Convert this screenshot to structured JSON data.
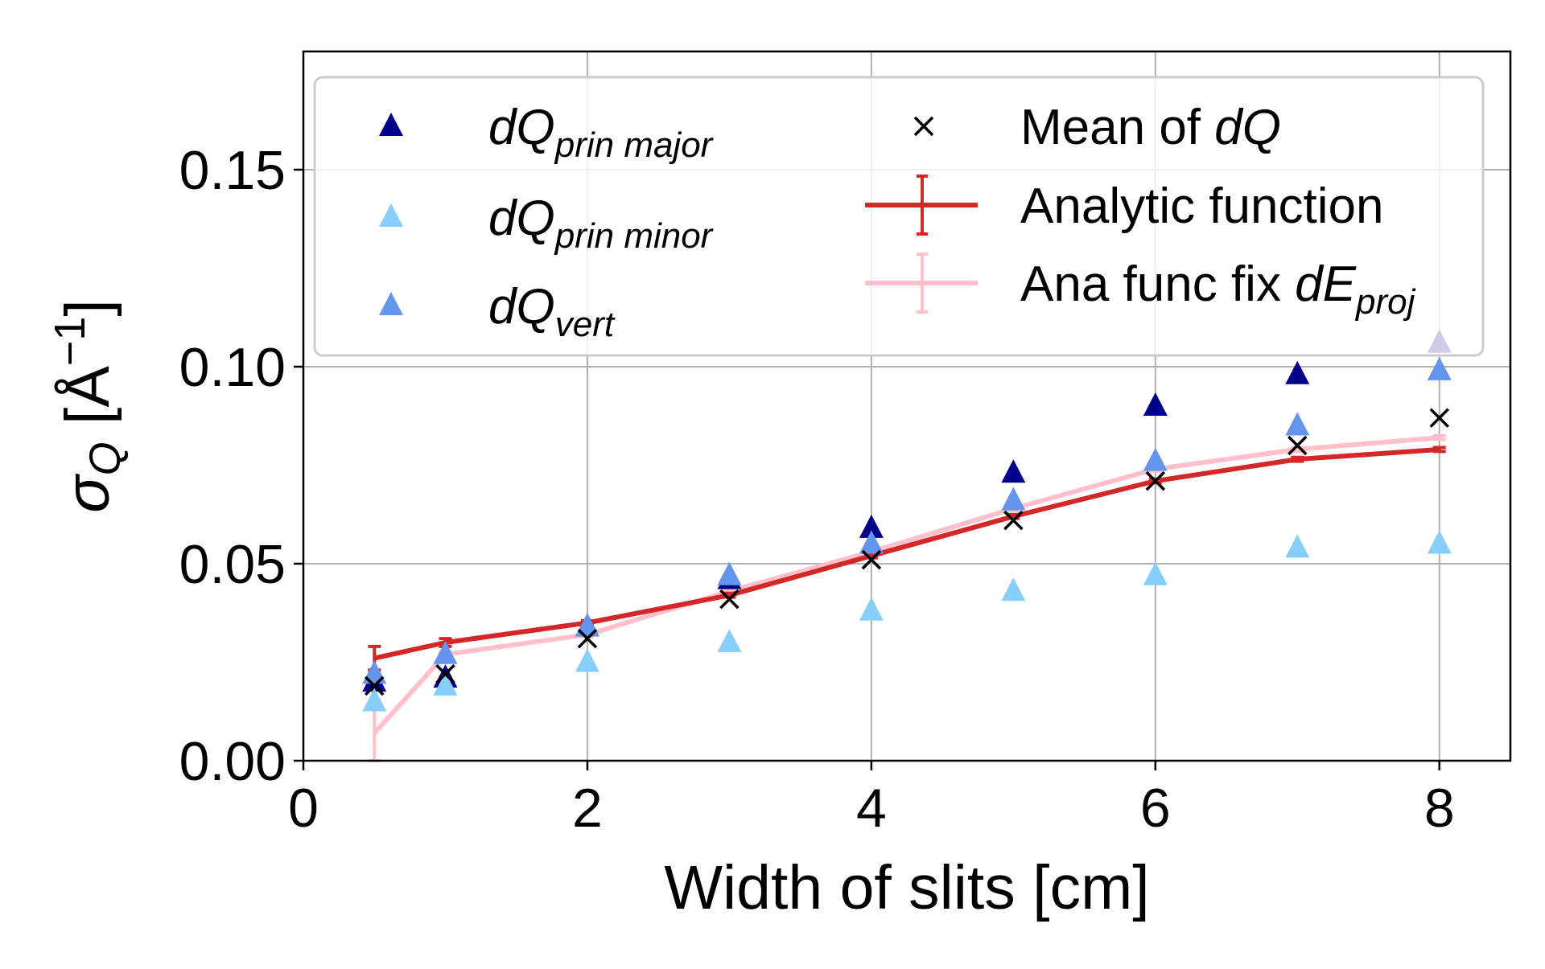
{
  "chart_data": {
    "type": "scatter",
    "xlabel": "Width of slits [cm]",
    "ylabel": "σ_Q [Å^-1]",
    "ylabel_parts": {
      "sigma": "σ",
      "sub": "Q",
      "bracket": "[Å",
      "sup": "−1",
      "close": "]"
    },
    "xlim": [
      0,
      8.5
    ],
    "ylim": [
      0,
      0.18
    ],
    "xticks": [
      0,
      2,
      4,
      6,
      8
    ],
    "xtick_labels": [
      "0",
      "2",
      "4",
      "6",
      "8"
    ],
    "yticks": [
      0,
      0.05,
      0.1,
      0.15
    ],
    "ytick_labels": [
      "0.00",
      "0.05",
      "0.10",
      "0.15"
    ],
    "grid": true,
    "legend_placement": "top",
    "x": [
      0.5,
      1,
      2,
      3,
      4,
      5,
      6,
      7,
      8
    ],
    "series": [
      {
        "name": "dQ prin major",
        "label_main": "dQ",
        "label_sub": "prin major",
        "kind": "triangle",
        "color": "#00008b",
        "values": [
          0.02,
          0.021,
          0.034,
          0.046,
          0.059,
          0.073,
          0.09,
          0.098,
          0.106
        ]
      },
      {
        "name": "dQ prin minor",
        "label_main": "dQ",
        "label_sub": "prin minor",
        "kind": "triangle",
        "color": "#87cefa",
        "values": [
          0.015,
          0.019,
          0.025,
          0.03,
          0.038,
          0.043,
          0.047,
          0.054,
          0.055
        ]
      },
      {
        "name": "dQ vert",
        "label_main": "dQ",
        "label_sub": "vert",
        "kind": "triangle",
        "color": "#6495ed",
        "values": [
          0.022,
          0.027,
          0.034,
          0.047,
          0.055,
          0.066,
          0.076,
          0.085,
          0.099
        ]
      },
      {
        "name": "Mean of dQ",
        "label_main": "Mean of ",
        "label_it": "dQ",
        "kind": "cross",
        "color": "#000000",
        "values": [
          0.019,
          0.022,
          0.031,
          0.041,
          0.051,
          0.061,
          0.071,
          0.08,
          0.087
        ]
      },
      {
        "name": "Analytic function",
        "label_main": "Analytic function",
        "kind": "errorline",
        "color": "#d62728",
        "values": [
          0.026,
          0.03,
          0.035,
          0.042,
          0.052,
          0.062,
          0.071,
          0.0765,
          0.079
        ],
        "errors": [
          0.003,
          0.001,
          0.0005,
          0.0005,
          0.0005,
          0.0005,
          0.0005,
          0.0005,
          0.0005
        ]
      },
      {
        "name": "Ana func fix dE_proj",
        "label_main": "Ana func fix ",
        "label_it": "dE",
        "label_sub": "proj",
        "kind": "errorline",
        "color": "#ffc0cb",
        "values": [
          0.007,
          0.027,
          0.032,
          0.043,
          0.053,
          0.064,
          0.074,
          0.079,
          0.082
        ],
        "errors": [
          0.007,
          0.0005,
          0.0005,
          0.0005,
          0.0005,
          0.0005,
          0.0005,
          0.0005,
          0.0005
        ]
      }
    ]
  }
}
